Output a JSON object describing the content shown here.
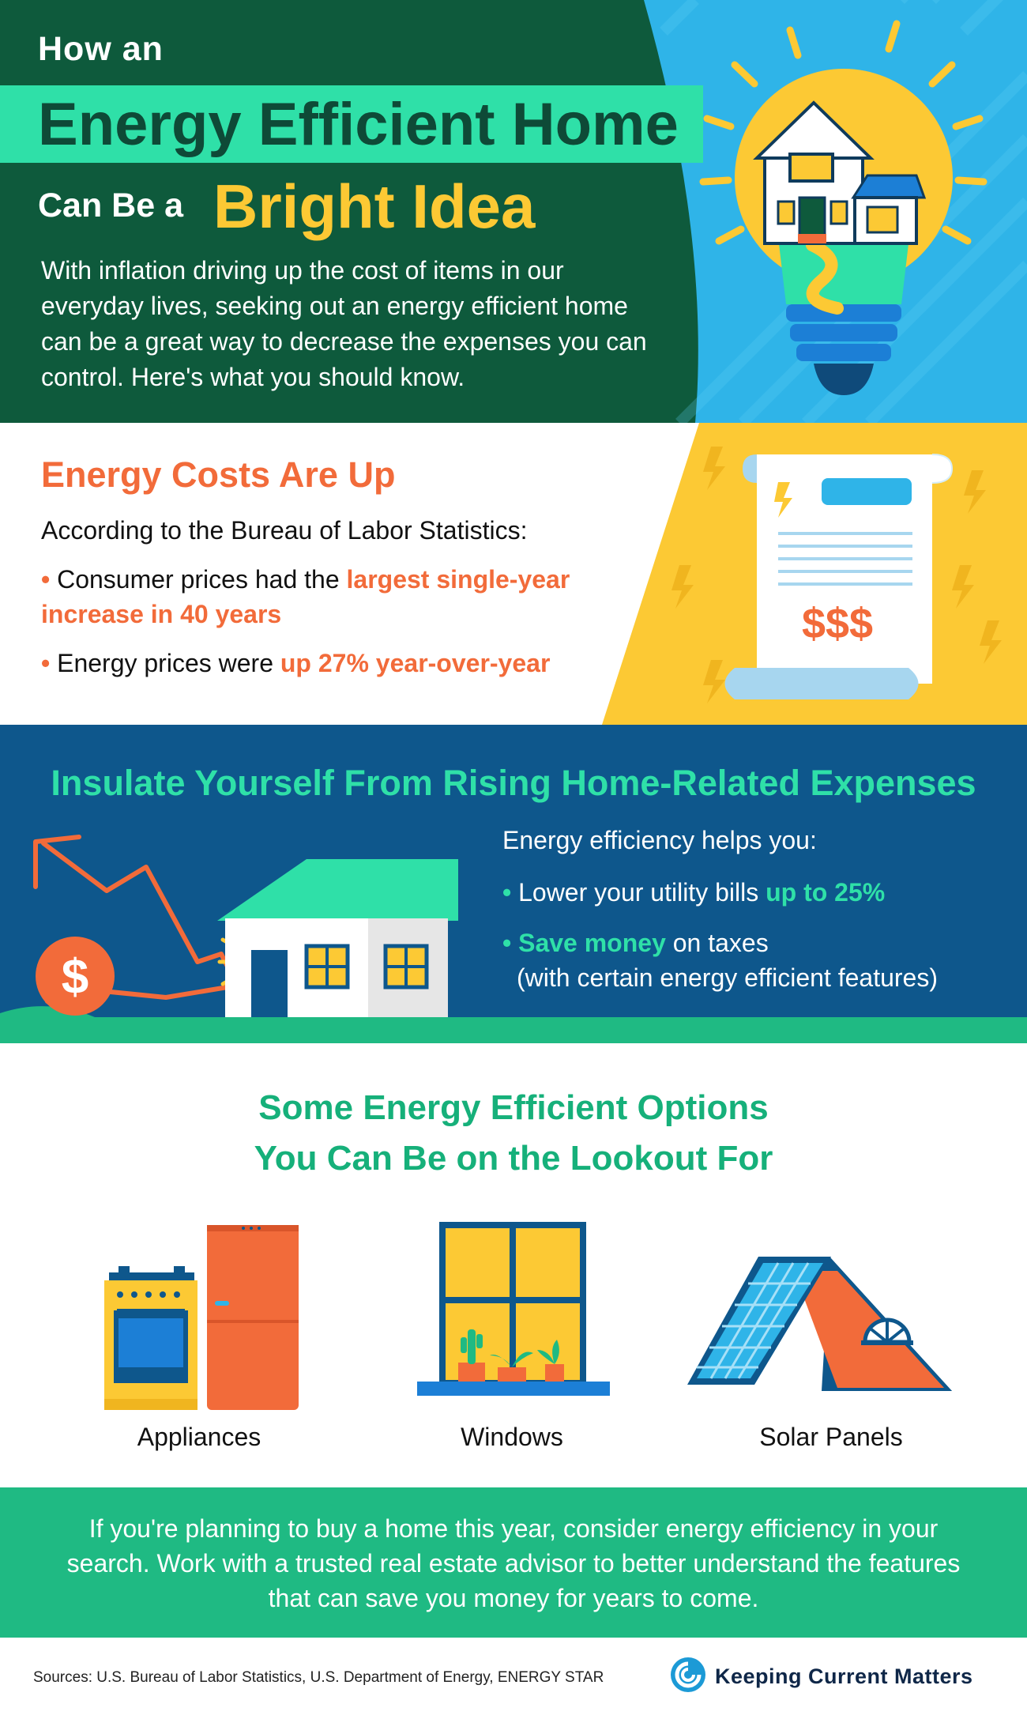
{
  "hero": {
    "kicker": "How an",
    "title": "Energy Efficient Home",
    "line3_prefix": "Can Be a",
    "line3_accent": "Bright Idea",
    "intro": "With inflation driving up the cost of items in our everyday lives, seeking out an energy efficient home can be a great way to decrease the expenses you can control. Here's what you should know."
  },
  "costs": {
    "heading": "Energy Costs Are Up",
    "intro": "According to the Bureau of Labor Statistics:",
    "bullet1_plain": "Consumer prices had the ",
    "bullet1_highlight": "largest single-year increase in 40 years",
    "bullet2_plain": "Energy prices were ",
    "bullet2_highlight": "up 27% year-over-year",
    "bill_text": "$$$"
  },
  "insulate": {
    "heading": "Insulate Yourself From Rising Home-Related Expenses",
    "intro": "Energy efficiency helps you:",
    "bullet1_plain": "Lower your utility bills ",
    "bullet1_highlight": "up to 25%",
    "bullet2_highlight": "Save money",
    "bullet2_plain": " on taxes",
    "bullet2_note": "(with certain energy efficient features)",
    "coin_text": "$"
  },
  "options": {
    "heading_line1": "Some Energy Efficient Options",
    "heading_line2": "You Can Be on the Lookout For",
    "items": [
      {
        "label": "Appliances",
        "icon": "appliances-icon"
      },
      {
        "label": "Windows",
        "icon": "window-icon"
      },
      {
        "label": "Solar Panels",
        "icon": "solar-panel-icon"
      }
    ]
  },
  "closing": {
    "text": "If you're planning to buy a home this year, consider energy efficiency in your search. Work with a trusted real estate advisor to better understand the features that can save you money for years to come."
  },
  "footer": {
    "sources": "Sources: U.S. Bureau of Labor Statistics, U.S. Department of Energy, ENERGY STAR",
    "brand": "Keeping Current Matters"
  },
  "colors": {
    "dark_green": "#0e5a3c",
    "mint": "#2fe0a8",
    "yellow": "#fcc934",
    "orange": "#f26b3a",
    "blue": "#0e578c",
    "sky": "#2fb4e8"
  }
}
